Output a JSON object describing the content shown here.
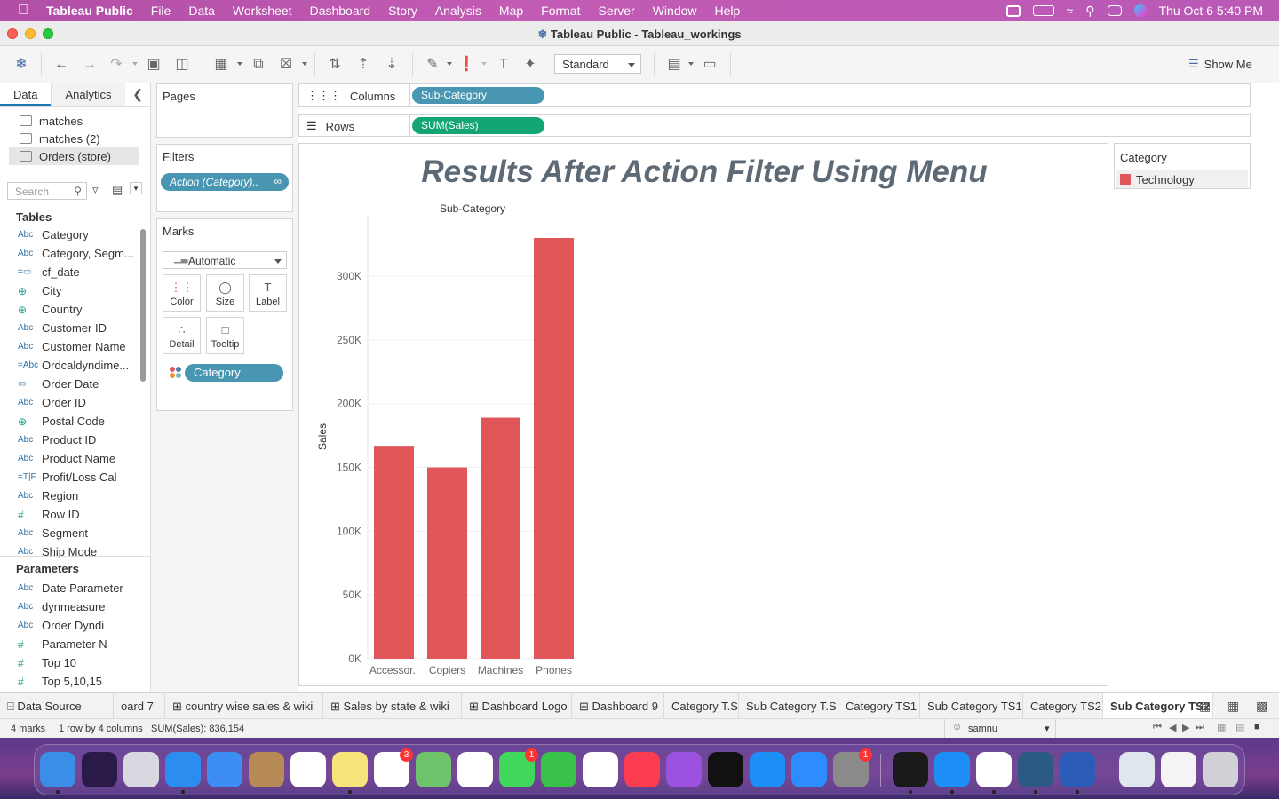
{
  "menubar": {
    "app": "Tableau Public",
    "items": [
      "File",
      "Data",
      "Worksheet",
      "Dashboard",
      "Story",
      "Analysis",
      "Map",
      "Format",
      "Server",
      "Window",
      "Help"
    ],
    "datetime": "Thu Oct 6  5:40 PM"
  },
  "window": {
    "title": "Tableau Public - Tableau_workings"
  },
  "toolbar": {
    "fit_select": "Standard",
    "show_me": "Show Me"
  },
  "datapane": {
    "tabs": [
      "Data",
      "Analytics"
    ],
    "sources": [
      "matches",
      "matches (2)",
      "Orders (store)"
    ],
    "search_placeholder": "Search",
    "tables_header": "Tables",
    "fields": [
      {
        "type": "Abc",
        "name": "Category"
      },
      {
        "type": "Abc",
        "name": "Category, Segm..."
      },
      {
        "type": "=▭",
        "name": "cf_date"
      },
      {
        "type": "⊕",
        "name": "City"
      },
      {
        "type": "⊕",
        "name": "Country"
      },
      {
        "type": "Abc",
        "name": "Customer ID"
      },
      {
        "type": "Abc",
        "name": "Customer Name"
      },
      {
        "type": "=Abc",
        "name": "Ordcaldyndime..."
      },
      {
        "type": "▭",
        "name": "Order Date"
      },
      {
        "type": "Abc",
        "name": "Order ID"
      },
      {
        "type": "⊕",
        "name": "Postal Code"
      },
      {
        "type": "Abc",
        "name": "Product ID"
      },
      {
        "type": "Abc",
        "name": "Product Name"
      },
      {
        "type": "=T|F",
        "name": "Profit/Loss Cal"
      },
      {
        "type": "Abc",
        "name": "Region"
      },
      {
        "type": "#",
        "name": "Row ID"
      },
      {
        "type": "Abc",
        "name": "Segment"
      },
      {
        "type": "Abc",
        "name": "Ship Mode"
      }
    ],
    "parameters_header": "Parameters",
    "parameters": [
      {
        "type": "Abc",
        "name": "Date Parameter"
      },
      {
        "type": "Abc",
        "name": "dynmeasure"
      },
      {
        "type": "Abc",
        "name": "Order Dyndi"
      },
      {
        "type": "#",
        "name": "Parameter N"
      },
      {
        "type": "#",
        "name": "Top 10"
      },
      {
        "type": "#",
        "name": "Top 5,10,15"
      }
    ]
  },
  "cards": {
    "pages": "Pages",
    "filters": "Filters",
    "filter_pill": "Action (Category)..",
    "marks": "Marks",
    "mark_type": "Automatic",
    "mark_buttons": [
      "Color",
      "Size",
      "Label",
      "Detail",
      "Tooltip"
    ],
    "mark_pill": "Category"
  },
  "shelves": {
    "columns_label": "Columns",
    "columns_pill": "Sub-Category",
    "rows_label": "Rows",
    "rows_pill": "SUM(Sales)"
  },
  "legend": {
    "title": "Category",
    "item": "Technology",
    "color": "#e15759"
  },
  "chart_data": {
    "type": "bar",
    "title": "Results After Action Filter Using Menu",
    "header": "Sub-Category",
    "ylabel": "Sales",
    "categories": [
      "Accessor..",
      "Copiers",
      "Machines",
      "Phones"
    ],
    "values": [
      167000,
      150000,
      189000,
      330000
    ],
    "yticks": [
      "0K",
      "50K",
      "100K",
      "150K",
      "200K",
      "250K",
      "300K"
    ],
    "ylim": [
      0,
      330000
    ],
    "color": "#e15759"
  },
  "sheet_tabs": [
    "Data Source",
    "oard 7",
    "country wise sales & wiki",
    "Sales by state & wiki",
    "Dashboard Logo",
    "Dashboard 9",
    "Category T.S",
    "Sub Category T.S",
    "Category TS1",
    "Sub Category TS1",
    "Category TS2",
    "Sub Category TS2"
  ],
  "status": {
    "marks": "4 marks",
    "dims": "1 row by 4 columns",
    "sum": "SUM(Sales): 836,154",
    "user": "samnu"
  }
}
